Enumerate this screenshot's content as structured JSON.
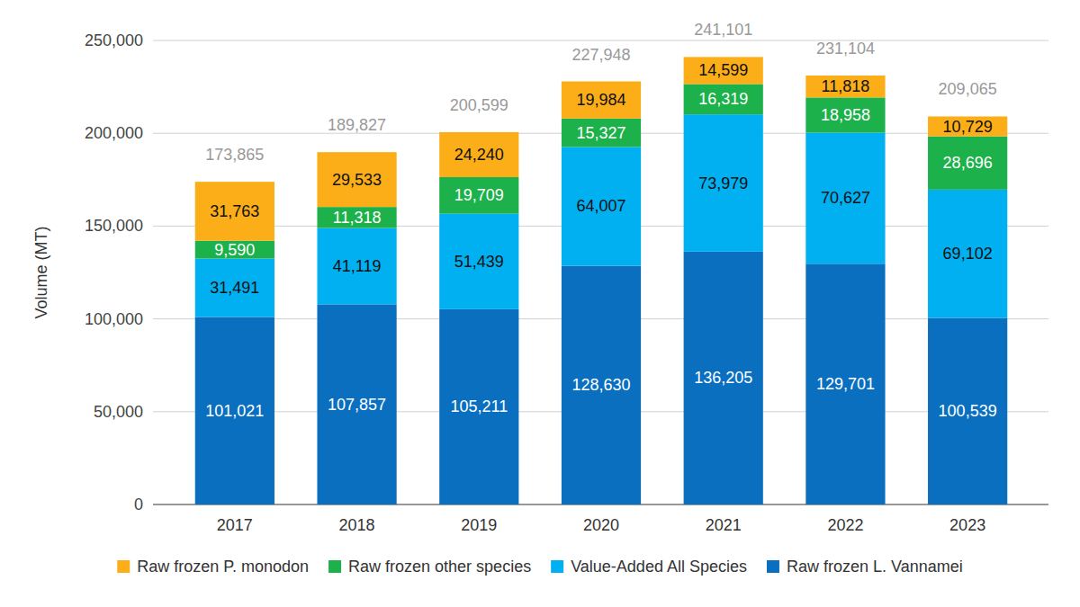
{
  "chart_data": {
    "type": "bar",
    "stacked": true,
    "data_labels": true,
    "grid": true,
    "legend": "bottom",
    "y_label": "Volume (MT)",
    "categories": [
      "2017",
      "2018",
      "2019",
      "2020",
      "2021",
      "2022",
      "2023"
    ],
    "ylim": [
      0,
      250000
    ],
    "yticks": [
      0,
      {
        "value": 50000,
        "label": "50,000"
      },
      {
        "value": 100000,
        "label": "100,000"
      },
      {
        "value": 150000,
        "label": "150,000"
      },
      {
        "value": 200000,
        "label": "200,000"
      },
      {
        "value": 250000,
        "label": "250,000"
      }
    ],
    "series": [
      {
        "name": "Raw frozen L. Vannamei",
        "color": "#0b6fc0",
        "values": [
          101021,
          107857,
          105211,
          128630,
          136205,
          129701,
          100539
        ],
        "value_labels": [
          "101,021",
          "107,857",
          "105,211",
          "128,630",
          "136,205",
          "129,701",
          "100,539"
        ]
      },
      {
        "name": "Value-Added All Species",
        "color": "#00b0f0",
        "values": [
          31491,
          41119,
          51439,
          64007,
          73979,
          70627,
          69102
        ],
        "value_labels": [
          "31,491",
          "41,119",
          "51,439",
          "64,007",
          "73,979",
          "70,627",
          "69,102"
        ]
      },
      {
        "name": "Raw frozen other species",
        "color": "#1db14b",
        "values": [
          9590,
          11318,
          19709,
          15327,
          16319,
          18958,
          28696
        ],
        "value_labels": [
          "9,590",
          "11,318",
          "19,709",
          "15,327",
          "16,319",
          "18,958",
          "28,696"
        ]
      },
      {
        "name": "Raw frozen P. monodon",
        "color": "#fbae17",
        "values": [
          31763,
          29533,
          24240,
          19984,
          14599,
          11818,
          10729
        ],
        "value_labels": [
          "31,763",
          "29,533",
          "24,240",
          "19,984",
          "14,599",
          "11,818",
          "10,729"
        ]
      }
    ],
    "totals": [
      173865,
      189827,
      200599,
      227948,
      241101,
      231104,
      209065
    ],
    "total_labels": [
      "173,865",
      "189,827",
      "200,599",
      "227,948",
      "241,101",
      "231,104",
      "209,065"
    ]
  }
}
